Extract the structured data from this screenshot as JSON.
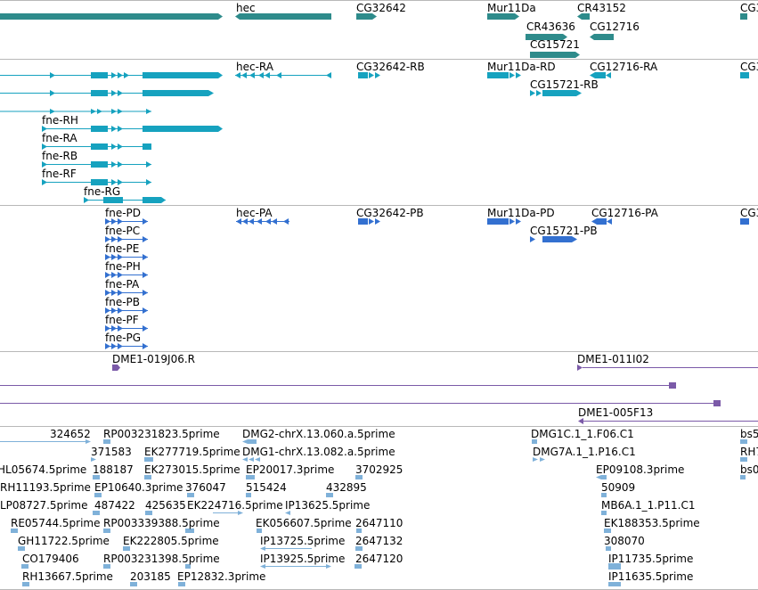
{
  "colors": {
    "gene": "#2e8b8b",
    "mrna": "#16a2bf",
    "protein": "#3370d0",
    "bac": "#7b5aa8",
    "est": "#7fb1d9",
    "separator": "#b8b8b8"
  },
  "tracks": [
    {
      "id": "gene-track",
      "labels": [
        "hec",
        "CG32642",
        "Mur11Da",
        "CR43152",
        "CR43636",
        "CG12716",
        "CG15721",
        "CG3"
      ]
    },
    {
      "id": "mrna-track",
      "labels": [
        "hec-RA",
        "CG32642-RB",
        "Mur11Da-RD",
        "CG12716-RA",
        "CG15721-RB",
        "CG3",
        "fne-RH",
        "fne-RA",
        "fne-RB",
        "fne-RF",
        "fne-RG"
      ]
    },
    {
      "id": "protein-track",
      "labels": [
        "fne-PD",
        "hec-PA",
        "CG32642-PB",
        "Mur11Da-PD",
        "CG12716-PA",
        "CG3",
        "CG15721-PB",
        "fne-PC",
        "fne-PE",
        "fne-PH",
        "fne-PA",
        "fne-PB",
        "fne-PF",
        "fne-PG"
      ]
    },
    {
      "id": "bac-track",
      "labels": [
        "DME1-019J06.R",
        "DME1-011I02",
        "DME1-005F13"
      ]
    },
    {
      "id": "est-track",
      "labels": [
        "324652",
        "RP003231823.5prime",
        "DMG2-chrX.13.060.a.5prime",
        "DMG1C.1_1.F06.C1",
        "bs5",
        "371583",
        "EK277719.5prime",
        "DMG1-chrX.13.082.a.5prime",
        "DMG7A.1_1.P16.C1",
        "RH7",
        "HL05674.5prime",
        "188187",
        "EK273015.5prime",
        "EP20017.3prime",
        "3702925",
        "EP09108.3prime",
        "bs0",
        "RH11193.5prime",
        "EP10640.3prime",
        "376047",
        "515424",
        "432895",
        "50909",
        "LP08727.5prime",
        "487422",
        "425635",
        "EK224716.5prime",
        "IP13625.5prime",
        "MB6A.1_1.P11.C1",
        "RE05744.5prime",
        "RP003339388.5prime",
        "EK056607.5prime",
        "2647110",
        "EK188353.5prime",
        "GH11722.5prime",
        "EK222805.5prime",
        "IP13725.5prime",
        "2647132",
        "308070",
        "CO179406",
        "RP003231398.5prime",
        "IP13925.5prime",
        "2647120",
        "IP11735.5prime",
        "RH13667.5prime",
        "203185",
        "EP12832.3prime",
        "IP11635.5prime"
      ]
    }
  ]
}
